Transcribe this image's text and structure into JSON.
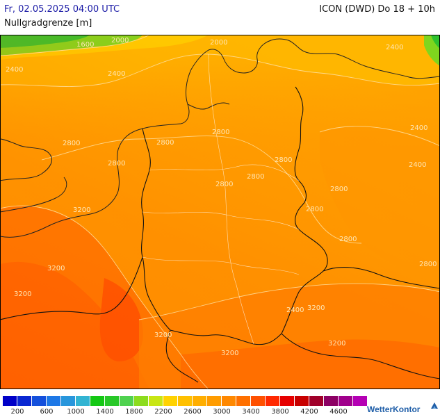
{
  "header": {
    "datetime": "Fr, 02.05.2025 04:00 UTC",
    "model": "ICON (DWD) Do 18 + 10h",
    "parameter": "Nullgradgrenze [m]"
  },
  "map": {
    "contour_labels": [
      "1600",
      "2000",
      "2400",
      "2400",
      "2800",
      "2800",
      "2800",
      "2800",
      "2800",
      "2800",
      "2800",
      "2800",
      "2800",
      "2800",
      "2400",
      "3200",
      "3200",
      "3200",
      "3200",
      "3200",
      "3200",
      "3200",
      "2400",
      "2800",
      "2000",
      "2400",
      "2400"
    ]
  },
  "legend": {
    "colors": [
      "#0000c8",
      "#0a28d2",
      "#1450dc",
      "#1e78e6",
      "#2896dc",
      "#32b4d2",
      "#14c814",
      "#28c828",
      "#50d250",
      "#8cdc1e",
      "#c8e614",
      "#ffd200",
      "#ffc000",
      "#ffae00",
      "#ff9c00",
      "#ff8800",
      "#ff7000",
      "#ff5000",
      "#ff2800",
      "#e60000",
      "#c80000",
      "#a0002a",
      "#8c0064",
      "#a0008c",
      "#b400b4"
    ],
    "tick_labels": [
      "200",
      "600",
      "1000",
      "1400",
      "1800",
      "2200",
      "2600",
      "3000",
      "3400",
      "3800",
      "4200",
      "4600"
    ]
  },
  "brand": {
    "name": "WetterKontor"
  }
}
